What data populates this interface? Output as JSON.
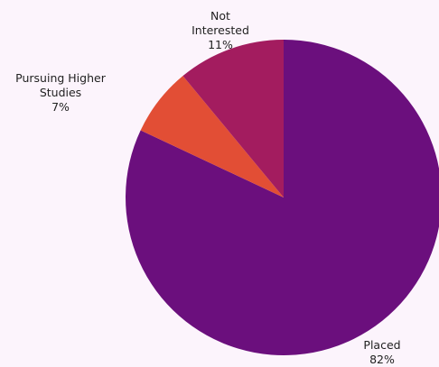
{
  "chart_data": {
    "type": "pie",
    "title": "",
    "slices": [
      {
        "label": "Placed",
        "label_lines": [
          "Placed"
        ],
        "value": 82,
        "value_label": "82%",
        "color": "#6b0f7d"
      },
      {
        "label": "Pursuing Higher Studies",
        "label_lines": [
          "Pursuing Higher",
          "Studies"
        ],
        "value": 7,
        "value_label": "7%",
        "color": "#e24e35"
      },
      {
        "label": "Not Interested",
        "label_lines": [
          "Not",
          "Interested"
        ],
        "value": 11,
        "value_label": "11%",
        "color": "#a31c5f"
      }
    ],
    "legend": "none"
  }
}
